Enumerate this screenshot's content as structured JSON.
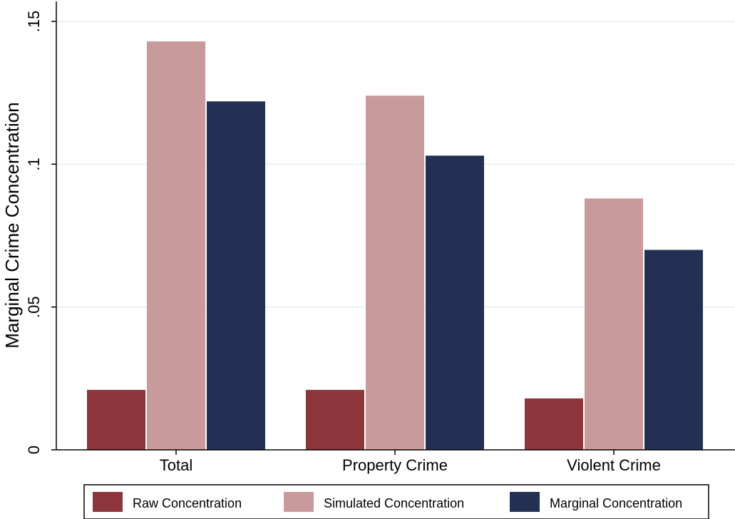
{
  "chart_data": {
    "type": "bar",
    "title": "",
    "xlabel": "",
    "ylabel": "Marginal Crime Concentration",
    "categories": [
      "Total",
      "Property Crime",
      "Violent Crime"
    ],
    "series": [
      {
        "name": "Raw Concentration",
        "color": "#8c363b",
        "values": [
          0.021,
          0.021,
          0.018
        ]
      },
      {
        "name": "Simulated Concentration",
        "color": "#c99a9b",
        "values": [
          0.143,
          0.124,
          0.088
        ]
      },
      {
        "name": "Marginal Concentration",
        "color": "#233053",
        "values": [
          0.122,
          0.103,
          0.07
        ]
      }
    ],
    "ylim": [
      0,
      0.15
    ],
    "yticks": [
      {
        "value": 0,
        "label": "0"
      },
      {
        "value": 0.05,
        "label": ".05"
      },
      {
        "value": 0.1,
        "label": ".1"
      },
      {
        "value": 0.15,
        "label": ".15"
      }
    ],
    "grid": true,
    "legend_position": "bottom"
  }
}
